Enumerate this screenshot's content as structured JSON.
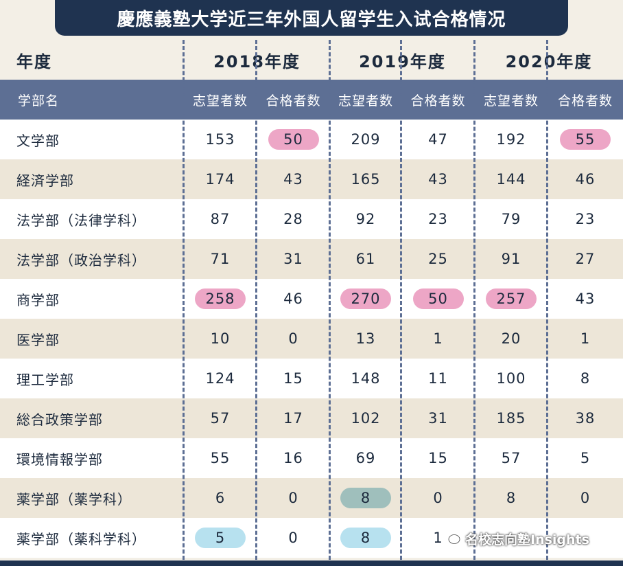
{
  "title": "慶應義塾大学近三年外国人留学生入试合格情况",
  "year_row": {
    "label": "年度",
    "years": [
      "2018年度",
      "2019年度",
      "2020年度"
    ]
  },
  "header_row": {
    "label": "学部名",
    "columns": [
      "志望者数",
      "合格者数",
      "志望者数",
      "合格者数",
      "志望者数",
      "合格者数"
    ]
  },
  "rows": [
    {
      "name": "文学部",
      "values": [
        "153",
        "50",
        "209",
        "47",
        "192",
        "55"
      ],
      "highlights": [
        null,
        "pink",
        null,
        null,
        null,
        "pink"
      ]
    },
    {
      "name": "経済学部",
      "values": [
        "174",
        "43",
        "165",
        "43",
        "144",
        "46"
      ],
      "highlights": [
        null,
        null,
        null,
        null,
        null,
        null
      ]
    },
    {
      "name": "法学部（法律学科）",
      "values": [
        "87",
        "28",
        "92",
        "23",
        "79",
        "23"
      ],
      "highlights": [
        null,
        null,
        null,
        null,
        null,
        null
      ]
    },
    {
      "name": "法学部（政治学科）",
      "values": [
        "71",
        "31",
        "61",
        "25",
        "91",
        "27"
      ],
      "highlights": [
        null,
        null,
        null,
        null,
        null,
        null
      ]
    },
    {
      "name": "商学部",
      "values": [
        "258",
        "46",
        "270",
        "50",
        "257",
        "43"
      ],
      "highlights": [
        "pink",
        null,
        "pink",
        "pink",
        "pink",
        null
      ]
    },
    {
      "name": "医学部",
      "values": [
        "10",
        "0",
        "13",
        "1",
        "20",
        "1"
      ],
      "highlights": [
        null,
        null,
        null,
        null,
        null,
        null
      ]
    },
    {
      "name": "理工学部",
      "values": [
        "124",
        "15",
        "148",
        "11",
        "100",
        "8"
      ],
      "highlights": [
        null,
        null,
        null,
        null,
        null,
        null
      ]
    },
    {
      "name": "総合政策学部",
      "values": [
        "57",
        "17",
        "102",
        "31",
        "185",
        "38"
      ],
      "highlights": [
        null,
        null,
        null,
        null,
        null,
        null
      ]
    },
    {
      "name": "環境情報学部",
      "values": [
        "55",
        "16",
        "69",
        "15",
        "57",
        "5"
      ],
      "highlights": [
        null,
        null,
        null,
        null,
        null,
        null
      ]
    },
    {
      "name": "薬学部（薬学科）",
      "values": [
        "6",
        "0",
        "8",
        "0",
        "8",
        "0"
      ],
      "highlights": [
        null,
        null,
        "teal",
        null,
        null,
        null
      ]
    },
    {
      "name": "薬学部（薬科学科）",
      "values": [
        "5",
        "0",
        "8",
        "1",
        "",
        ""
      ],
      "highlights": [
        "blue",
        null,
        "blue",
        null,
        null,
        null
      ]
    }
  ],
  "watermark_text": "名校志向塾Insights",
  "colors": {
    "title_bg": "#1f3350",
    "header_bg": "#5d6f94",
    "row_beige": "#ede6d8",
    "highlight_pink": "#eda6c6",
    "highlight_blue": "#b7e1ef",
    "highlight_teal": "#9fbfbc"
  }
}
